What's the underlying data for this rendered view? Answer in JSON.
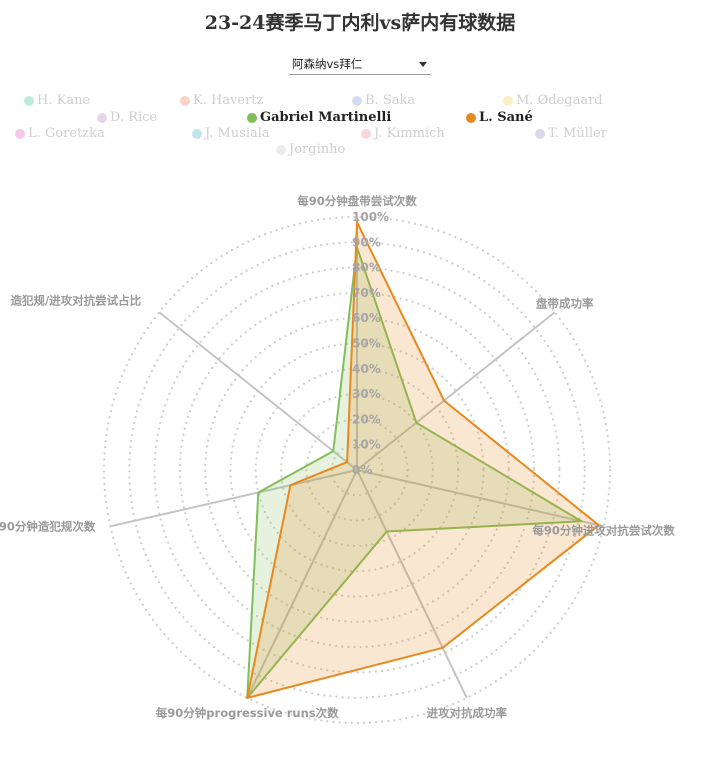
{
  "title": "23-24赛季马丁内利vs萨内有球数据",
  "match_select": {
    "value": "阿森纳vs拜仁"
  },
  "legend": [
    {
      "name": "H. Kane",
      "color": "#bfe9da",
      "active": false
    },
    {
      "name": "K. Havertz",
      "color": "#f6d3c6",
      "active": false
    },
    {
      "name": "B. Saka",
      "color": "#d3dcef",
      "active": false
    },
    {
      "name": "M. Ødegaard",
      "color": "#fbeec0",
      "active": false
    },
    {
      "name": "D. Rice",
      "color": "#e3d5ea",
      "active": false
    },
    {
      "name": "Gabriel Martinelli",
      "color": "#82be5a",
      "active": true
    },
    {
      "name": "L. Sané",
      "color": "#e8891f",
      "active": true
    },
    {
      "name": "L. Goretzka",
      "color": "#f5c9ea",
      "active": false
    },
    {
      "name": "J. Musiala",
      "color": "#c1e4ea",
      "active": false
    },
    {
      "name": "J. Kimmich",
      "color": "#f9d7d9",
      "active": false
    },
    {
      "name": "T. Müller",
      "color": "#d8d8ea",
      "active": false
    },
    {
      "name": "Jorginho",
      "color": "#ececec",
      "active": false
    }
  ],
  "chart_data": {
    "type": "radar",
    "axes": [
      "每90分钟盘带尝试次数",
      "盘带成功率",
      "每90分钟进攻对抗尝试次数",
      "进攻对抗成功率",
      "每90分钟progressive runs次数",
      "每90分钟造犯规次数",
      "造犯规/进攻对抗尝试占比"
    ],
    "ticks": [
      "0%",
      "10%",
      "20%",
      "30%",
      "40%",
      "50%",
      "60%",
      "70%",
      "80%",
      "90%",
      "100%"
    ],
    "range": [
      0,
      100
    ],
    "series": [
      {
        "name": "Gabriel Martinelli",
        "color": "#82be5a",
        "values": [
          88,
          30,
          91,
          27,
          100,
          40,
          12
        ]
      },
      {
        "name": "L. Sané",
        "color": "#e8891f",
        "values": [
          98,
          44,
          98,
          78,
          100,
          27,
          5
        ]
      }
    ]
  }
}
